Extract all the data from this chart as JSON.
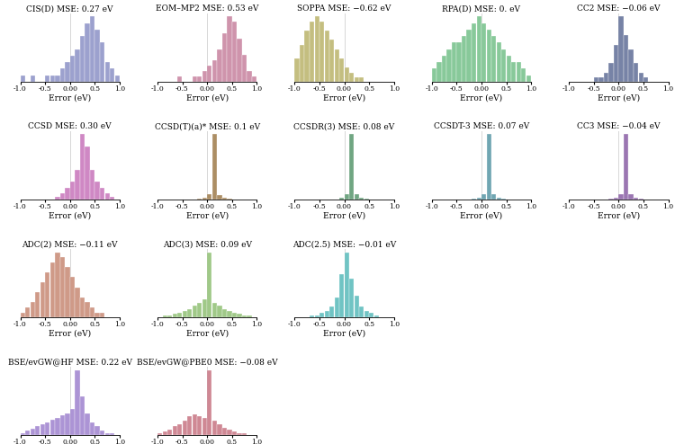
{
  "subplots": [
    {
      "title": "CIS(D) MSE: 0.27 eV",
      "color": "#7B82BE",
      "kde_color": "#3A4A9A",
      "bins": [
        -1.0,
        -0.9,
        -0.8,
        -0.7,
        -0.6,
        -0.5,
        -0.4,
        -0.3,
        -0.2,
        -0.1,
        0.0,
        0.1,
        0.2,
        0.3,
        0.4,
        0.5,
        0.6,
        0.7,
        0.8,
        0.9,
        1.0
      ],
      "counts": [
        1,
        0,
        1,
        0,
        0,
        1,
        1,
        1,
        2,
        3,
        4,
        5,
        7,
        9,
        10,
        8,
        6,
        3,
        2,
        1
      ],
      "show_kde": true,
      "row": 0,
      "col": 0
    },
    {
      "title": "EOM–MP2 MSE: 0.53 eV",
      "color": "#C07090",
      "kde_color": "#903050",
      "bins": [
        -1.0,
        -0.9,
        -0.8,
        -0.7,
        -0.6,
        -0.5,
        -0.4,
        -0.3,
        -0.2,
        -0.1,
        0.0,
        0.1,
        0.2,
        0.3,
        0.4,
        0.5,
        0.6,
        0.7,
        0.8,
        0.9,
        1.0
      ],
      "counts": [
        0,
        0,
        0,
        0,
        1,
        0,
        0,
        1,
        1,
        2,
        3,
        4,
        6,
        9,
        12,
        11,
        8,
        5,
        2,
        1
      ],
      "show_kde": true,
      "row": 0,
      "col": 1
    },
    {
      "title": "SOPPA MSE: −0.62 eV",
      "color": "#B0A855",
      "kde_color": "#706820",
      "bins": [
        -1.0,
        -0.9,
        -0.8,
        -0.7,
        -0.6,
        -0.5,
        -0.4,
        -0.3,
        -0.2,
        -0.1,
        0.0,
        0.1,
        0.2,
        0.3,
        0.4,
        0.5,
        0.6,
        0.7,
        0.8,
        0.9,
        1.0
      ],
      "counts": [
        5,
        8,
        11,
        13,
        14,
        13,
        11,
        9,
        7,
        5,
        3,
        2,
        1,
        1,
        0,
        0,
        0,
        0,
        0,
        0
      ],
      "show_kde": true,
      "row": 0,
      "col": 2
    },
    {
      "title": "RPA(D) MSE: 0. eV",
      "color": "#60B878",
      "kde_color": "#208848",
      "bins": [
        -1.0,
        -0.9,
        -0.8,
        -0.7,
        -0.6,
        -0.5,
        -0.4,
        -0.3,
        -0.2,
        -0.1,
        0.0,
        0.1,
        0.2,
        0.3,
        0.4,
        0.5,
        0.6,
        0.7,
        0.8,
        0.9,
        1.0
      ],
      "counts": [
        2,
        3,
        4,
        5,
        6,
        6,
        7,
        8,
        9,
        10,
        9,
        8,
        7,
        6,
        5,
        4,
        3,
        3,
        2,
        1
      ],
      "show_kde": true,
      "row": 0,
      "col": 3
    },
    {
      "title": "CC2 MSE: −0.06 eV",
      "color": "#4A5A88",
      "kde_color": "#1A2858",
      "bins": [
        -1.0,
        -0.9,
        -0.8,
        -0.7,
        -0.6,
        -0.5,
        -0.4,
        -0.3,
        -0.2,
        -0.1,
        0.0,
        0.1,
        0.2,
        0.3,
        0.4,
        0.5,
        0.6,
        0.7,
        0.8,
        0.9,
        1.0
      ],
      "counts": [
        0,
        0,
        0,
        0,
        0,
        1,
        1,
        2,
        4,
        8,
        14,
        10,
        7,
        4,
        2,
        1,
        0,
        0,
        0,
        0
      ],
      "show_kde": true,
      "row": 0,
      "col": 4
    },
    {
      "title": "CCSD MSE: 0.30 eV",
      "color": "#C060B0",
      "kde_color": "#903080",
      "bins": [
        -1.0,
        -0.9,
        -0.8,
        -0.7,
        -0.6,
        -0.5,
        -0.4,
        -0.3,
        -0.2,
        -0.1,
        0.0,
        0.1,
        0.2,
        0.3,
        0.4,
        0.5,
        0.6,
        0.7,
        0.8,
        0.9,
        1.0
      ],
      "counts": [
        0,
        0,
        0,
        0,
        0,
        0,
        0,
        1,
        2,
        4,
        6,
        10,
        22,
        18,
        10,
        6,
        4,
        2,
        1,
        0
      ],
      "show_kde": true,
      "row": 1,
      "col": 0
    },
    {
      "title": "CCSD(T)(a)* MSE: 0.1 eV",
      "color": "#906830",
      "kde_color": "#604000",
      "bins": [
        -1.0,
        -0.9,
        -0.8,
        -0.7,
        -0.6,
        -0.5,
        -0.4,
        -0.3,
        -0.2,
        -0.1,
        0.0,
        0.1,
        0.2,
        0.3,
        0.4,
        0.5,
        0.6,
        0.7,
        0.8,
        0.9,
        1.0
      ],
      "counts": [
        0,
        0,
        0,
        0,
        0,
        0,
        0,
        0,
        1,
        2,
        5,
        60,
        4,
        2,
        1,
        0,
        0,
        0,
        0,
        0
      ],
      "show_kde": false,
      "row": 1,
      "col": 1
    },
    {
      "title": "CCSDR(3) MSE: 0.08 eV",
      "color": "#408858",
      "kde_color": "#105828",
      "bins": [
        -1.0,
        -0.9,
        -0.8,
        -0.7,
        -0.6,
        -0.5,
        -0.4,
        -0.3,
        -0.2,
        -0.1,
        0.0,
        0.1,
        0.2,
        0.3,
        0.4,
        0.5,
        0.6,
        0.7,
        0.8,
        0.9,
        1.0
      ],
      "counts": [
        0,
        0,
        0,
        0,
        0,
        0,
        0,
        0,
        0,
        2,
        5,
        65,
        5,
        2,
        1,
        0,
        0,
        0,
        0,
        0
      ],
      "show_kde": false,
      "row": 1,
      "col": 2
    },
    {
      "title": "CCSDT-3 MSE: 0.07 eV",
      "color": "#408898",
      "kde_color": "#105868",
      "bins": [
        -1.0,
        -0.9,
        -0.8,
        -0.7,
        -0.6,
        -0.5,
        -0.4,
        -0.3,
        -0.2,
        -0.1,
        0.0,
        0.1,
        0.2,
        0.3,
        0.4,
        0.5,
        0.6,
        0.7,
        0.8,
        0.9,
        1.0
      ],
      "counts": [
        0,
        0,
        0,
        0,
        0,
        0,
        0,
        0,
        1,
        2,
        5,
        65,
        5,
        2,
        1,
        0,
        0,
        0,
        0,
        0
      ],
      "show_kde": false,
      "row": 1,
      "col": 3
    },
    {
      "title": "CC3 MSE: −0.04 eV",
      "color": "#7A4898",
      "kde_color": "#4A1868",
      "bins": [
        -1.0,
        -0.9,
        -0.8,
        -0.7,
        -0.6,
        -0.5,
        -0.4,
        -0.3,
        -0.2,
        -0.1,
        0.0,
        0.1,
        0.2,
        0.3,
        0.4,
        0.5,
        0.6,
        0.7,
        0.8,
        0.9,
        1.0
      ],
      "counts": [
        0,
        0,
        0,
        0,
        0,
        0,
        0,
        0,
        1,
        2,
        5,
        65,
        5,
        2,
        1,
        0,
        0,
        0,
        0,
        0
      ],
      "show_kde": false,
      "row": 1,
      "col": 4
    },
    {
      "title": "ADC(2) MSE: −0.11 eV",
      "color": "#C07860",
      "kde_color": "#903030",
      "bins": [
        -1.0,
        -0.9,
        -0.8,
        -0.7,
        -0.6,
        -0.5,
        -0.4,
        -0.3,
        -0.2,
        -0.1,
        0.0,
        0.1,
        0.2,
        0.3,
        0.4,
        0.5,
        0.6,
        0.7,
        0.8,
        0.9,
        1.0
      ],
      "counts": [
        1,
        2,
        3,
        5,
        7,
        9,
        11,
        13,
        12,
        10,
        8,
        6,
        4,
        3,
        2,
        1,
        1,
        0,
        0,
        0
      ],
      "show_kde": true,
      "row": 2,
      "col": 0
    },
    {
      "title": "ADC(3) MSE: 0.09 eV",
      "color": "#80B860",
      "kde_color": "#508030",
      "bins": [
        -1.0,
        -0.9,
        -0.8,
        -0.7,
        -0.6,
        -0.5,
        -0.4,
        -0.3,
        -0.2,
        -0.1,
        0.0,
        0.1,
        0.2,
        0.3,
        0.4,
        0.5,
        0.6,
        0.7,
        0.8,
        0.9,
        1.0
      ],
      "counts": [
        0,
        1,
        1,
        2,
        3,
        4,
        5,
        7,
        9,
        11,
        40,
        9,
        7,
        5,
        4,
        3,
        2,
        1,
        1,
        0
      ],
      "show_kde": true,
      "row": 2,
      "col": 1
    },
    {
      "title": "ADC(2.5) MSE: −0.01 eV",
      "color": "#40B0B0",
      "kde_color": "#108888",
      "bins": [
        -1.0,
        -0.9,
        -0.8,
        -0.7,
        -0.6,
        -0.5,
        -0.4,
        -0.3,
        -0.2,
        -0.1,
        0.0,
        0.1,
        0.2,
        0.3,
        0.4,
        0.5,
        0.6,
        0.7,
        0.8,
        0.9,
        1.0
      ],
      "counts": [
        0,
        0,
        0,
        1,
        1,
        2,
        3,
        5,
        9,
        20,
        30,
        18,
        10,
        5,
        3,
        2,
        1,
        0,
        0,
        0
      ],
      "show_kde": true,
      "row": 2,
      "col": 2
    },
    {
      "title": "BSE/evGW@HF MSE: 0.22 eV",
      "color": "#9070C8",
      "kde_color": "#5040A0",
      "bins": [
        -1.0,
        -0.9,
        -0.8,
        -0.7,
        -0.6,
        -0.5,
        -0.4,
        -0.3,
        -0.2,
        -0.1,
        0.0,
        0.1,
        0.2,
        0.3,
        0.4,
        0.5,
        0.6,
        0.7,
        0.8,
        0.9,
        1.0
      ],
      "counts": [
        1,
        2,
        3,
        4,
        5,
        6,
        7,
        8,
        9,
        10,
        12,
        30,
        18,
        10,
        6,
        4,
        2,
        1,
        1,
        0
      ],
      "show_kde": true,
      "row": 3,
      "col": 0
    },
    {
      "title": "BSE/evGW@PBE0 MSE: −0.08 eV",
      "color": "#C06070",
      "kde_color": "#903040",
      "bins": [
        -1.0,
        -0.9,
        -0.8,
        -0.7,
        -0.6,
        -0.5,
        -0.4,
        -0.3,
        -0.2,
        -0.1,
        0.0,
        0.1,
        0.2,
        0.3,
        0.4,
        0.5,
        0.6,
        0.7,
        0.8,
        0.9,
        1.0
      ],
      "counts": [
        1,
        2,
        3,
        5,
        6,
        8,
        10,
        11,
        10,
        9,
        35,
        8,
        6,
        4,
        3,
        2,
        1,
        1,
        0,
        0
      ],
      "show_kde": true,
      "row": 3,
      "col": 1
    }
  ],
  "xlim": [
    -1.0,
    1.0
  ],
  "xticks": [
    -1.0,
    -0.5,
    0.0,
    0.5,
    1.0
  ],
  "xticklabels": [
    "-1.0",
    "-0.5",
    "0.00",
    "0.5",
    "1.0"
  ],
  "xlabel": "Error (eV)",
  "title_fontsize": 6.5,
  "label_fontsize": 6.5,
  "tick_fontsize": 5.5,
  "figure_bgcolor": "#FFFFFF"
}
